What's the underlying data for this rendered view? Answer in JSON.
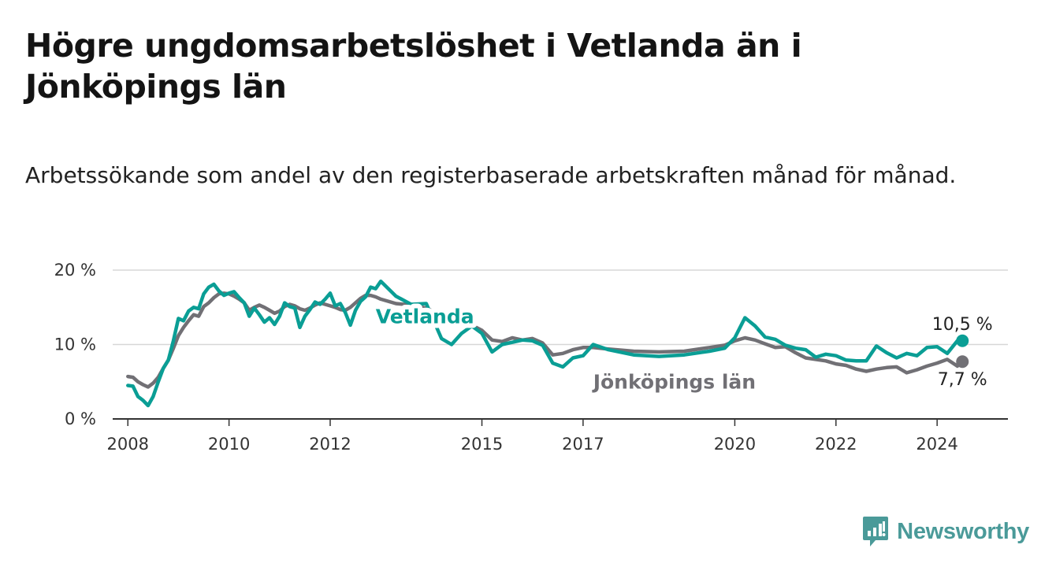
{
  "title": "Högre ungdomsarbetslöshet i Vetlanda än i Jönköpings län",
  "subtitle": "Arbetssökande som andel av den registerbaserade arbetskraften månad för månad.",
  "brand": {
    "name": "Newsworthy",
    "icon": "newsworthy-logo-icon",
    "color": "#4a9a99"
  },
  "chart_data": {
    "type": "line",
    "title": "Högre ungdomsarbetslöshet i Vetlanda än i Jönköpings län",
    "subtitle": "Arbetssökande som andel av den registerbaserade arbetskraften månad för månad.",
    "xlabel": "",
    "ylabel": "",
    "xlim": [
      2007.7,
      2025.4
    ],
    "ylim": [
      0,
      20
    ],
    "grid": "horizontal",
    "legend": "inline labels",
    "x_ticks": [
      {
        "value": 2008,
        "label": "2008"
      },
      {
        "value": 2010,
        "label": "2010"
      },
      {
        "value": 2012,
        "label": "2012"
      },
      {
        "value": 2015,
        "label": "2015"
      },
      {
        "value": 2017,
        "label": "2017"
      },
      {
        "value": 2020,
        "label": "2020"
      },
      {
        "value": 2022,
        "label": "2022"
      },
      {
        "value": 2024,
        "label": "2024"
      }
    ],
    "y_ticks": [
      {
        "value": 0,
        "label": "0 %"
      },
      {
        "value": 10,
        "label": "10 %"
      },
      {
        "value": 20,
        "label": "20 %"
      }
    ],
    "series": [
      {
        "name": "Jönköpings län",
        "label": "Jönköpings län",
        "color": "#717075",
        "end_label": "7,7 %",
        "end_value": 7.7,
        "x": [
          2008.0,
          2008.1,
          2008.2,
          2008.3,
          2008.4,
          2008.5,
          2008.6,
          2008.7,
          2008.8,
          2008.9,
          2009.0,
          2009.1,
          2009.2,
          2009.3,
          2009.4,
          2009.5,
          2009.6,
          2009.7,
          2009.8,
          2009.9,
          2010.0,
          2010.1,
          2010.2,
          2010.3,
          2010.4,
          2010.5,
          2010.6,
          2010.7,
          2010.8,
          2010.9,
          2011.0,
          2011.1,
          2011.2,
          2011.3,
          2011.4,
          2011.5,
          2011.6,
          2011.7,
          2011.8,
          2011.9,
          2012.0,
          2012.1,
          2012.2,
          2012.3,
          2012.4,
          2012.5,
          2012.6,
          2012.7,
          2012.8,
          2012.9,
          2013.0,
          2013.3,
          2013.6,
          2013.9,
          2014.2,
          2014.4,
          2014.6,
          2014.8,
          2015.0,
          2015.2,
          2015.4,
          2015.6,
          2015.8,
          2016.0,
          2016.2,
          2016.4,
          2016.6,
          2016.8,
          2017.0,
          2017.2,
          2017.5,
          2018.0,
          2018.5,
          2019.0,
          2019.5,
          2019.8,
          2020.0,
          2020.2,
          2020.4,
          2020.6,
          2020.8,
          2021.0,
          2021.2,
          2021.4,
          2021.6,
          2021.8,
          2022.0,
          2022.2,
          2022.4,
          2022.6,
          2022.8,
          2023.0,
          2023.2,
          2023.4,
          2023.6,
          2023.8,
          2024.0,
          2024.2,
          2024.4,
          2024.5
        ],
        "values": [
          5.7,
          5.6,
          5.0,
          4.6,
          4.3,
          4.8,
          5.6,
          6.8,
          7.9,
          9.5,
          11.2,
          12.3,
          13.2,
          14.0,
          13.8,
          15.1,
          15.6,
          16.3,
          16.8,
          16.9,
          16.8,
          16.5,
          16.1,
          15.6,
          14.6,
          15.0,
          15.3,
          15.0,
          14.6,
          14.2,
          14.5,
          15.1,
          15.4,
          15.2,
          14.8,
          14.6,
          14.9,
          15.3,
          15.6,
          15.4,
          15.2,
          15.0,
          14.7,
          14.6,
          15.0,
          15.6,
          16.2,
          16.6,
          16.6,
          16.4,
          16.1,
          15.5,
          15.3,
          14.9,
          13.9,
          12.9,
          13.1,
          12.6,
          11.9,
          10.6,
          10.4,
          10.9,
          10.6,
          10.8,
          10.2,
          8.6,
          8.8,
          9.3,
          9.6,
          9.6,
          9.4,
          9.1,
          9.0,
          9.1,
          9.6,
          9.9,
          10.5,
          10.9,
          10.6,
          10.1,
          9.6,
          9.7,
          8.9,
          8.2,
          8.0,
          7.8,
          7.4,
          7.2,
          6.7,
          6.4,
          6.7,
          6.9,
          7.0,
          6.2,
          6.6,
          7.1,
          7.5,
          8.0,
          7.1,
          7.7
        ]
      },
      {
        "name": "Vetlanda",
        "label": "Vetlanda",
        "color": "#0a9e95",
        "end_label": "10,5 %",
        "end_value": 10.5,
        "x": [
          2008.0,
          2008.1,
          2008.2,
          2008.3,
          2008.4,
          2008.5,
          2008.6,
          2008.7,
          2008.8,
          2008.9,
          2009.0,
          2009.1,
          2009.2,
          2009.3,
          2009.4,
          2009.5,
          2009.6,
          2009.7,
          2009.8,
          2009.9,
          2010.0,
          2010.1,
          2010.2,
          2010.3,
          2010.4,
          2010.5,
          2010.6,
          2010.7,
          2010.8,
          2010.9,
          2011.0,
          2011.1,
          2011.2,
          2011.3,
          2011.4,
          2011.5,
          2011.6,
          2011.7,
          2011.8,
          2011.9,
          2012.0,
          2012.1,
          2012.2,
          2012.3,
          2012.4,
          2012.5,
          2012.6,
          2012.7,
          2012.8,
          2012.9,
          2013.0,
          2013.3,
          2013.6,
          2013.9,
          2014.2,
          2014.4,
          2014.6,
          2014.8,
          2015.0,
          2015.2,
          2015.4,
          2015.6,
          2015.8,
          2016.0,
          2016.2,
          2016.4,
          2016.6,
          2016.8,
          2017.0,
          2017.2,
          2017.5,
          2018.0,
          2018.5,
          2019.0,
          2019.5,
          2019.8,
          2020.0,
          2020.2,
          2020.4,
          2020.6,
          2020.8,
          2021.0,
          2021.2,
          2021.4,
          2021.6,
          2021.8,
          2022.0,
          2022.2,
          2022.4,
          2022.6,
          2022.8,
          2023.0,
          2023.2,
          2023.4,
          2023.6,
          2023.8,
          2024.0,
          2024.2,
          2024.4,
          2024.5
        ],
        "values": [
          4.5,
          4.4,
          3.0,
          2.5,
          1.8,
          3.0,
          5.0,
          6.8,
          7.9,
          10.5,
          13.5,
          13.2,
          14.5,
          15.0,
          14.8,
          16.8,
          17.7,
          18.1,
          17.2,
          16.6,
          16.9,
          17.1,
          16.3,
          15.6,
          13.8,
          14.9,
          14.0,
          13.0,
          13.6,
          12.7,
          13.8,
          15.6,
          15.1,
          14.9,
          12.3,
          13.8,
          14.7,
          15.7,
          15.4,
          16.1,
          16.9,
          15.2,
          15.5,
          14.3,
          12.6,
          14.6,
          15.8,
          16.4,
          17.7,
          17.5,
          18.5,
          16.5,
          15.4,
          15.5,
          10.8,
          10.0,
          11.5,
          12.5,
          11.5,
          9.0,
          10.0,
          10.3,
          10.6,
          10.5,
          9.9,
          7.5,
          7.0,
          8.2,
          8.5,
          10.0,
          9.3,
          8.6,
          8.4,
          8.6,
          9.1,
          9.5,
          10.9,
          13.6,
          12.5,
          11.0,
          10.7,
          9.9,
          9.5,
          9.3,
          8.3,
          8.7,
          8.5,
          7.9,
          7.8,
          7.8,
          9.8,
          8.9,
          8.2,
          8.8,
          8.5,
          9.6,
          9.7,
          8.8,
          10.5,
          10.5
        ]
      }
    ]
  }
}
